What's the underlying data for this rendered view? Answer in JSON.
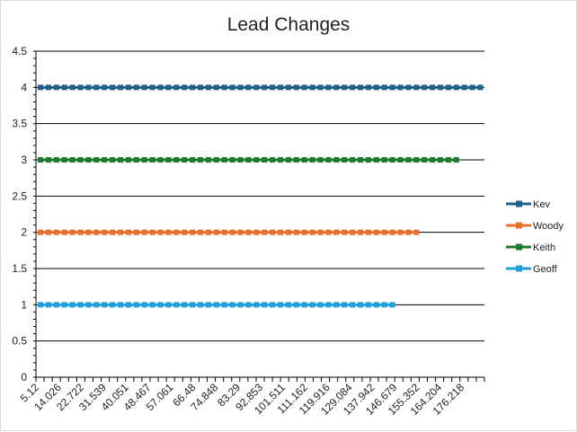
{
  "chart_data": {
    "type": "line",
    "title": "Lead Changes",
    "xlabel": "",
    "ylabel": "",
    "x_tick_labels": [
      "5.12",
      "14.026",
      "22.722",
      "31.539",
      "40.051",
      "48.467",
      "57.061",
      "66.48",
      "74.848",
      "83.29",
      "92.853",
      "101.511",
      "111.162",
      "119.916",
      "129.084",
      "137.942",
      "146.679",
      "155.352",
      "164.204",
      "176.218"
    ],
    "y_ticks": [
      "0",
      "0.5",
      "1",
      "1.5",
      "2",
      "2.5",
      "3",
      "3.5",
      "4",
      "4.5"
    ],
    "ylim": [
      0,
      4.5
    ],
    "grid": true,
    "legend_position": "right",
    "series": [
      {
        "name": "Kev",
        "value": 4,
        "points": 56,
        "color": "#1f5f88"
      },
      {
        "name": "Woody",
        "value": 2,
        "points": 48,
        "color": "#e8702a"
      },
      {
        "name": "Keith",
        "value": 3,
        "points": 53,
        "color": "#1e7a2e"
      },
      {
        "name": "Geoff",
        "value": 1,
        "points": 45,
        "color": "#1ea1d8"
      }
    ]
  }
}
